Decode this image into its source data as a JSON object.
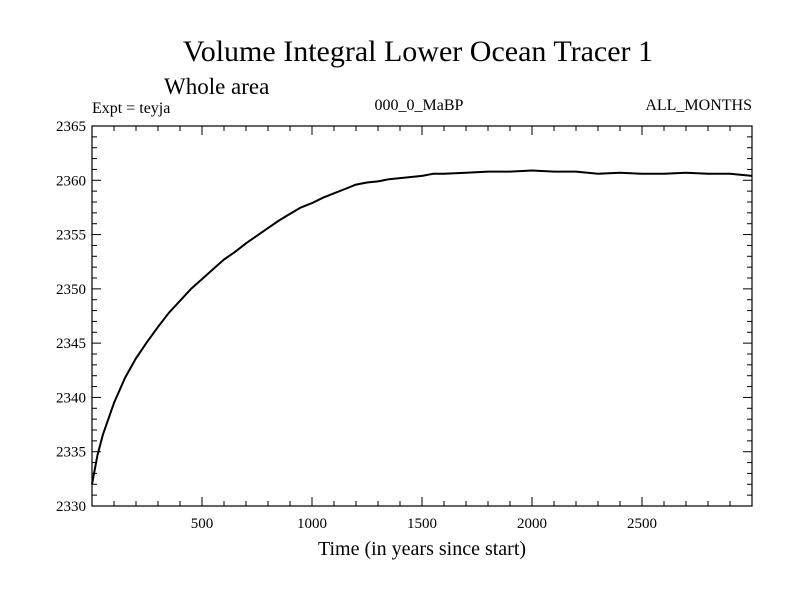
{
  "chart_data": {
    "type": "line",
    "title": "Volume Integral Lower Ocean Tracer 1",
    "subtitle": "Whole area",
    "experiment_label": "Expt = teyja",
    "period_label": "000_0_MaBP",
    "months_label": "ALL_MONTHS",
    "xlabel": "Time (in years since start)",
    "ylabel": "",
    "xlim": [
      0,
      3000
    ],
    "ylim": [
      2330,
      2365
    ],
    "xticks": [
      500,
      1000,
      1500,
      2000,
      2500
    ],
    "yticks": [
      2330,
      2335,
      2340,
      2345,
      2350,
      2355,
      2360,
      2365
    ],
    "x_minor_step": 100,
    "y_minor_step": 1,
    "series": [
      {
        "name": "Lower Ocean Tracer 1",
        "color": "#000000",
        "x": [
          0,
          25,
          50,
          100,
          150,
          200,
          250,
          300,
          350,
          400,
          450,
          500,
          550,
          600,
          650,
          700,
          750,
          800,
          850,
          900,
          950,
          1000,
          1050,
          1100,
          1150,
          1200,
          1250,
          1300,
          1350,
          1400,
          1450,
          1500,
          1550,
          1600,
          1700,
          1800,
          1900,
          2000,
          2100,
          2200,
          2300,
          2400,
          2500,
          2600,
          2700,
          2800,
          2900,
          3000
        ],
        "values": [
          2332.0,
          2334.7,
          2336.6,
          2339.5,
          2341.8,
          2343.6,
          2345.1,
          2346.5,
          2347.8,
          2348.9,
          2350.0,
          2350.9,
          2351.8,
          2352.7,
          2353.4,
          2354.2,
          2354.9,
          2355.6,
          2356.3,
          2356.9,
          2357.5,
          2357.9,
          2358.4,
          2358.8,
          2359.2,
          2359.6,
          2359.8,
          2359.9,
          2360.1,
          2360.2,
          2360.3,
          2360.4,
          2360.6,
          2360.6,
          2360.7,
          2360.8,
          2360.8,
          2360.9,
          2360.8,
          2360.8,
          2360.6,
          2360.7,
          2360.6,
          2360.6,
          2360.7,
          2360.6,
          2360.6,
          2360.4
        ]
      }
    ]
  }
}
